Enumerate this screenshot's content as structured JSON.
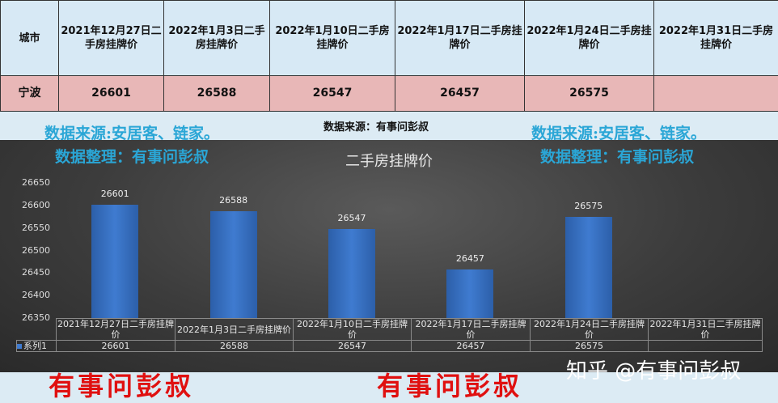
{
  "table": {
    "header": [
      "城市",
      "2021年12月27日二手房挂牌价",
      "2022年1月3日二手房挂牌价",
      "2022年1月10日二手房挂牌价",
      "2022年1月17日二手房挂牌价",
      "2022年1月24日二手房挂牌价",
      "2022年1月31日二手房挂牌价"
    ],
    "row": [
      "宁波",
      "26601",
      "26588",
      "26547",
      "26457",
      "26575",
      ""
    ]
  },
  "watermarks": {
    "source_left": "数据来源:安居客、链家。",
    "organizer_left": "数据整理：有事问彭叔",
    "source_center": "数据来源：有事问彭叔",
    "source_right": "数据来源:安居客、链家。",
    "organizer_right": "数据整理：有事问彭叔",
    "red_left": "有事问彭叔",
    "red_right": "有事问彭叔",
    "zhihu": "知乎 @有事问彭叔"
  },
  "chart_data": {
    "type": "bar",
    "title": "二手房挂牌价",
    "categories": [
      "2021年12月27日二手房挂牌价",
      "2022年1月3日二手房挂牌价",
      "2022年1月10日二手房挂牌价",
      "2022年1月17日二手房挂牌价",
      "2022年1月24日二手房挂牌价",
      "2022年1月31日二手房挂牌价"
    ],
    "series": [
      {
        "name": "系列1",
        "values": [
          26601,
          26588,
          26547,
          26457,
          26575,
          null
        ]
      }
    ],
    "ylim": [
      26350,
      26650
    ],
    "yticks": [
      26350,
      26400,
      26450,
      26500,
      26550,
      26600,
      26650
    ],
    "grid": false,
    "legend": "data-table",
    "bar_color": "#3f7bd0"
  }
}
